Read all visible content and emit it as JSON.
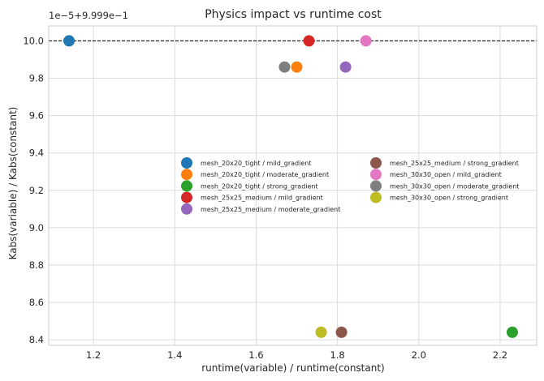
{
  "chart_data": {
    "type": "scatter",
    "title": "Physics impact vs runtime cost",
    "xlabel": "runtime(variable) / runtime(constant)",
    "ylabel": "Kabs(variable) / Kabs(constant)",
    "y_offset_label": "1e−5+9.999e−1",
    "xlim": [
      1.09,
      2.29
    ],
    "ylim": [
      8.37,
      10.08
    ],
    "x_ticks": [
      1.2,
      1.4,
      1.6,
      1.8,
      2.0,
      2.2
    ],
    "x_tick_labels": [
      "1.2",
      "1.4",
      "1.6",
      "1.8",
      "2.0",
      "2.2"
    ],
    "y_ticks": [
      8.4,
      8.6,
      8.8,
      9.0,
      9.2,
      9.4,
      9.6,
      9.8,
      10.0
    ],
    "y_tick_labels": [
      "8.4",
      "8.6",
      "8.8",
      "9.0",
      "9.2",
      "9.4",
      "9.6",
      "9.8",
      "10.0"
    ],
    "reference_line_y": 10.0,
    "grid": true,
    "legend_location": "center-right",
    "series": [
      {
        "name": "mesh_20x20_tight / mild_gradient",
        "color": "#1f77b4",
        "x": 1.14,
        "y": 10.0
      },
      {
        "name": "mesh_20x20_tight / moderate_gradient",
        "color": "#ff7f0e",
        "x": 1.7,
        "y": 9.86
      },
      {
        "name": "mesh_20x20_tight / strong_gradient",
        "color": "#2ca02c",
        "x": 2.23,
        "y": 8.44
      },
      {
        "name": "mesh_25x25_medium / mild_gradient",
        "color": "#d62728",
        "x": 1.73,
        "y": 10.0
      },
      {
        "name": "mesh_25x25_medium / moderate_gradient",
        "color": "#9467bd",
        "x": 1.82,
        "y": 9.86
      },
      {
        "name": "mesh_25x25_medium / strong_gradient",
        "color": "#8c564b",
        "x": 1.81,
        "y": 8.44
      },
      {
        "name": "mesh_30x30_open / mild_gradient",
        "color": "#e377c2",
        "x": 1.87,
        "y": 10.0
      },
      {
        "name": "mesh_30x30_open / moderate_gradient",
        "color": "#7f7f7f",
        "x": 1.67,
        "y": 9.86
      },
      {
        "name": "mesh_30x30_open / strong_gradient",
        "color": "#bcbd22",
        "x": 1.76,
        "y": 8.44
      }
    ]
  }
}
